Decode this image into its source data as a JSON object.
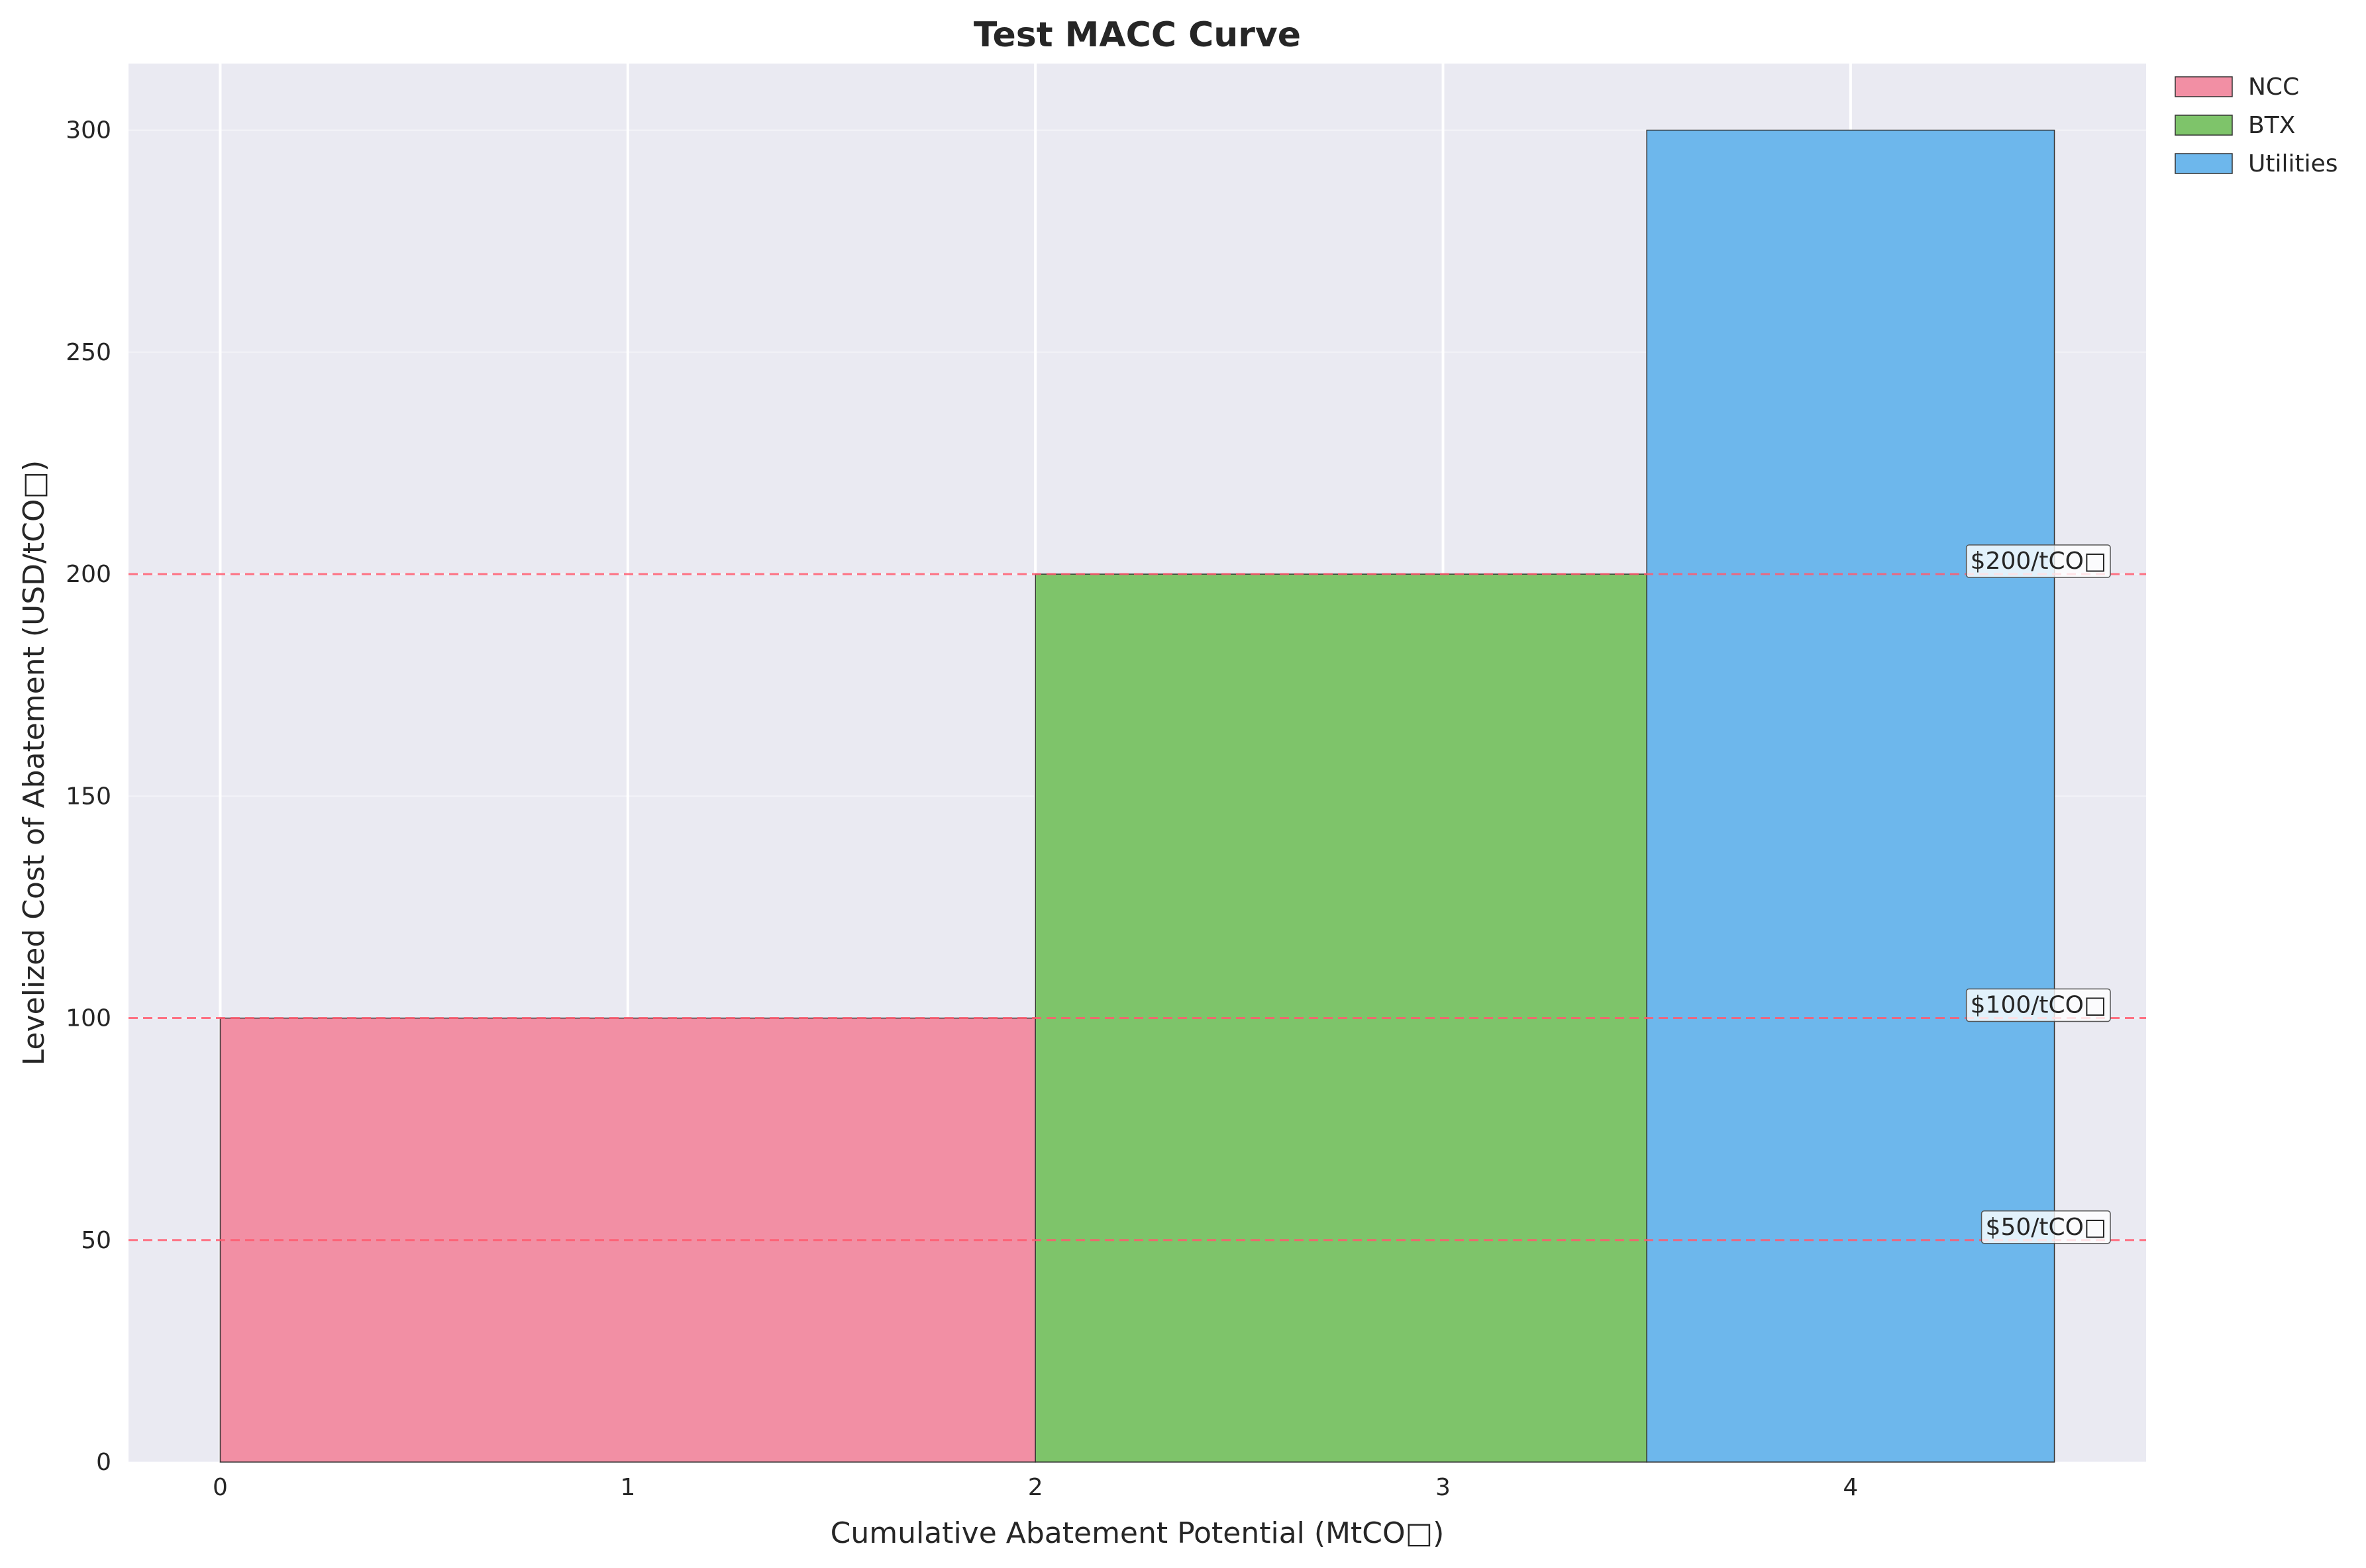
{
  "chart_data": {
    "type": "bar",
    "title": "Test MACC Curve",
    "xlabel": "Cumulative Abatement Potential (MtCO□)",
    "ylabel": "Levelized Cost of Abatement (USD/tCO□)",
    "xlim": [
      -0.225,
      4.725
    ],
    "ylim": [
      0,
      315
    ],
    "xticks": [
      0,
      1,
      2,
      3,
      4
    ],
    "yticks": [
      0,
      50,
      100,
      150,
      200,
      250,
      300
    ],
    "grid": true,
    "legend_position": "upper-right-outside",
    "bars": [
      {
        "name": "NCC",
        "x_start": 0,
        "x_end": 2.0,
        "value": 100,
        "color": "#f28fa4"
      },
      {
        "name": "BTX",
        "x_start": 2.0,
        "x_end": 3.5,
        "value": 200,
        "color": "#7ec46a"
      },
      {
        "name": "Utilities",
        "x_start": 3.5,
        "x_end": 4.5,
        "value": 300,
        "color": "#6db7ec"
      }
    ],
    "reference_lines": [
      {
        "value": 50,
        "label": "$50/tCO□"
      },
      {
        "value": 100,
        "label": "$100/tCO□"
      },
      {
        "value": 200,
        "label": "$200/tCO□"
      }
    ],
    "reference_color": "#ff5a6e",
    "plot_background": "#eaeaf2"
  }
}
